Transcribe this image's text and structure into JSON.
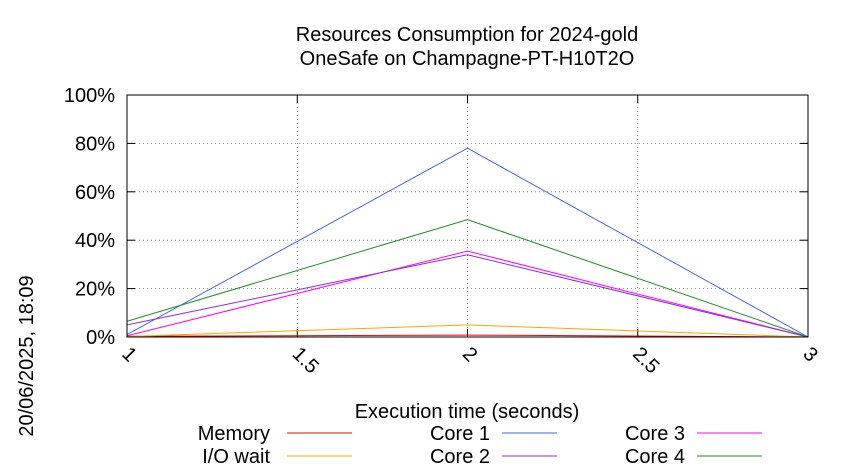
{
  "chart_data": {
    "type": "line",
    "title": [
      "Resources Consumption for 2024-gold",
      "OneSafe on Champagne-PT-H10T2O"
    ],
    "xlabel": "Execution time (seconds)",
    "ylabel": "",
    "timestamp": "20/06/2025, 18:09",
    "xlim": [
      1,
      3
    ],
    "ylim": [
      0,
      100
    ],
    "xticks": [
      1,
      1.5,
      2,
      2.5,
      3
    ],
    "xtick_labels": [
      "1",
      "1.5",
      "2",
      "2.5",
      "3"
    ],
    "yticks": [
      0,
      20,
      40,
      60,
      80,
      100
    ],
    "ytick_labels": [
      "0%",
      "20%",
      "40%",
      "60%",
      "80%",
      "100%"
    ],
    "grid": true,
    "legend_position": "bottom",
    "x": [
      1,
      2,
      3
    ],
    "series": [
      {
        "name": "Memory",
        "color": "#ff0000",
        "values": [
          0.3,
          0.8,
          0.0
        ]
      },
      {
        "name": "Core 1",
        "color": "#4169e1",
        "values": [
          1.0,
          78.0,
          0.0
        ]
      },
      {
        "name": "Core 3",
        "color": "#ff00ff",
        "values": [
          0.5,
          35.5,
          0.0
        ]
      },
      {
        "name": "I/O wait",
        "color": "#ffa500",
        "values": [
          0.2,
          5.0,
          0.0
        ]
      },
      {
        "name": "Core 2",
        "color": "#8a2be2",
        "values": [
          5.0,
          34.0,
          0.0
        ]
      },
      {
        "name": "Core 4",
        "color": "#228b22",
        "values": [
          6.5,
          48.5,
          0.0
        ]
      }
    ]
  }
}
